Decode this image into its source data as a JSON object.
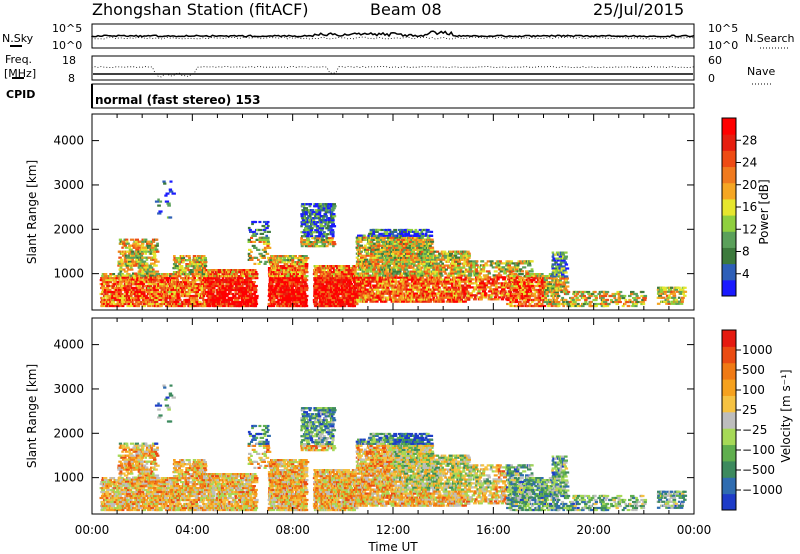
{
  "header": {
    "title": "Zhongshan Station (fitACF)",
    "beam": "Beam 08",
    "date": "25/Jul/2015"
  },
  "top_panels": {
    "nsky_label": "N.Sky",
    "nsearch_label": "N.Search",
    "noise_ticks_left": [
      "10^5",
      "10^0"
    ],
    "noise_ticks_right": [
      "10^5",
      "10^0"
    ],
    "freq_label_line1": "Freq.",
    "freq_label_line2": "[MHz]",
    "freq_ticks": [
      "18",
      "8"
    ],
    "nave_label": "Nave",
    "nave_ticks": [
      "60",
      "0"
    ],
    "cpid_label": "CPID",
    "cpid_text": "normal (fast stereo) 153"
  },
  "chart_data": [
    {
      "type": "heatmap",
      "name": "power",
      "ylabel": "Slant Range [km]",
      "yticks": [
        1000,
        2000,
        3000,
        4000
      ],
      "ylim": [
        180,
        4600
      ],
      "xticks": [
        "00:00",
        "04:00",
        "08:00",
        "12:00",
        "16:00",
        "20:00",
        "00:00"
      ],
      "xlim_hours": [
        0,
        24
      ],
      "colorbar": {
        "label": "Power [dB]",
        "ticks": [
          "4",
          "8",
          "12",
          "16",
          "20",
          "24",
          "28"
        ],
        "colors": [
          "#1a1aff",
          "#2e5fb8",
          "#3c7a3c",
          "#5aa05a",
          "#8fcf3f",
          "#e6e62e",
          "#f5a623",
          "#f07a1e",
          "#ee4b14",
          "#e61e0f",
          "#ff0000"
        ]
      }
    },
    {
      "type": "heatmap",
      "name": "velocity",
      "ylabel": "Slant Range [km]",
      "yticks": [
        1000,
        2000,
        3000,
        4000
      ],
      "ylim": [
        180,
        4600
      ],
      "xticks": [
        "00:00",
        "04:00",
        "08:00",
        "12:00",
        "16:00",
        "20:00",
        "00:00"
      ],
      "xlim_hours": [
        0,
        24
      ],
      "xlabel": "Time UT",
      "colorbar": {
        "label": "Velocity [m s⁻¹]",
        "ticks": [
          "1000",
          "500",
          "100",
          "25",
          "−25",
          "−100",
          "−500",
          "−1000"
        ],
        "colors": [
          "#1e3cc8",
          "#2f6cb0",
          "#3d8a5e",
          "#5fae4e",
          "#a6d957",
          "#bdbdbd",
          "#f5c242",
          "#f5a11e",
          "#f07a14",
          "#ea4b12",
          "#e51a10"
        ]
      }
    }
  ]
}
